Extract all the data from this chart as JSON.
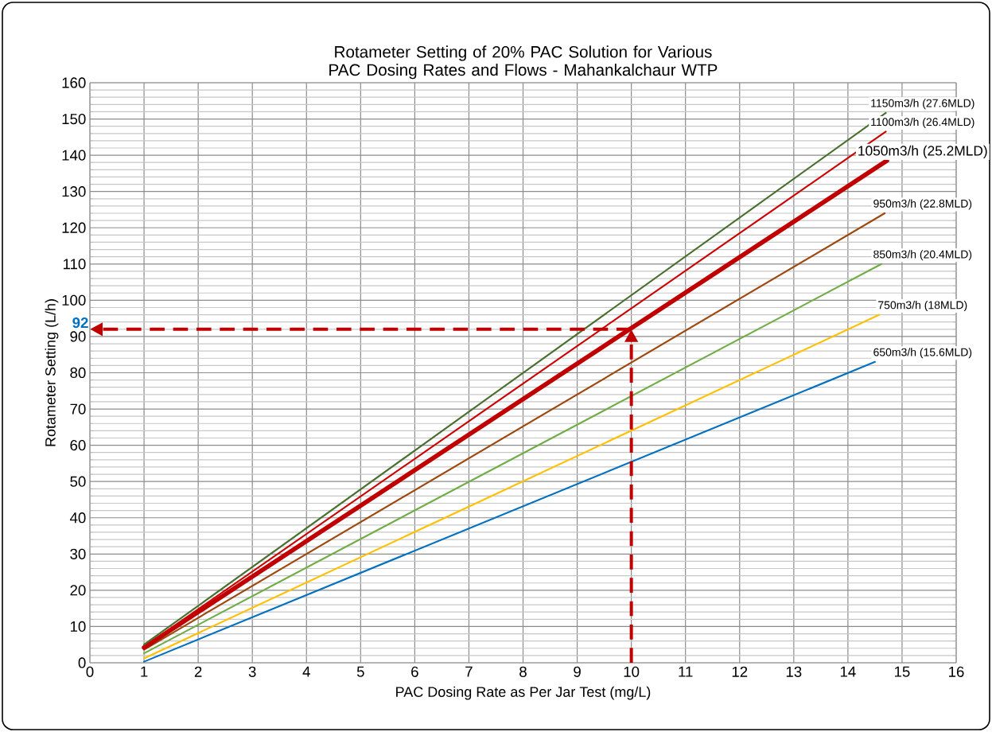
{
  "chart_data": {
    "type": "line",
    "title": "Rotameter Setting of 20% PAC Solution for Various PAC Dosing Rates and Flows - Mahankalchaur WTP",
    "xlabel": "PAC Dosing Rate as Per Jar Test (mg/L)",
    "ylabel": "Rotameter Setting (L/h)",
    "xlim": [
      0,
      16
    ],
    "ylim": [
      0,
      160
    ],
    "xticks": [
      0,
      1,
      2,
      3,
      4,
      5,
      6,
      7,
      8,
      9,
      10,
      11,
      12,
      13,
      14,
      15,
      16
    ],
    "yticks": [
      0,
      10,
      20,
      30,
      40,
      50,
      60,
      70,
      80,
      90,
      100,
      110,
      120,
      130,
      140,
      150,
      160
    ],
    "grid": true,
    "marker": "none",
    "line_style": "solid",
    "series": [
      {
        "name": "650m3/h (15.6MLD)",
        "color": "#0070c0",
        "x": [
          1,
          14.5
        ],
        "values": [
          0.3,
          83
        ]
      },
      {
        "name": "750m3/h (18MLD)",
        "color": "#ffc000",
        "x": [
          1,
          14.58
        ],
        "values": [
          1.2,
          96
        ]
      },
      {
        "name": "850m3/h (20.4MLD)",
        "color": "#70ad47",
        "x": [
          1,
          14.62
        ],
        "values": [
          2.6,
          110
        ]
      },
      {
        "name": "950m3/h (22.8MLD)",
        "color": "#9e480e",
        "x": [
          1,
          14.68
        ],
        "values": [
          3.6,
          124
        ]
      },
      {
        "name": "1050m3/h (25.2MLD)",
        "color": "#c00000",
        "x": [
          1,
          14.72
        ],
        "values": [
          4.2,
          138.5
        ]
      },
      {
        "name": "1100m3/h (26.4MLD)",
        "color": "#cc0000",
        "x": [
          1,
          14.7
        ],
        "values": [
          4.4,
          146.5
        ]
      },
      {
        "name": "1150m3/h (27.6MLD)",
        "color": "#4a7030",
        "x": [
          1,
          14.7
        ],
        "values": [
          5,
          151.7
        ]
      }
    ],
    "annotations": [
      {
        "text": "92",
        "x": 10,
        "y": 92
      }
    ]
  }
}
